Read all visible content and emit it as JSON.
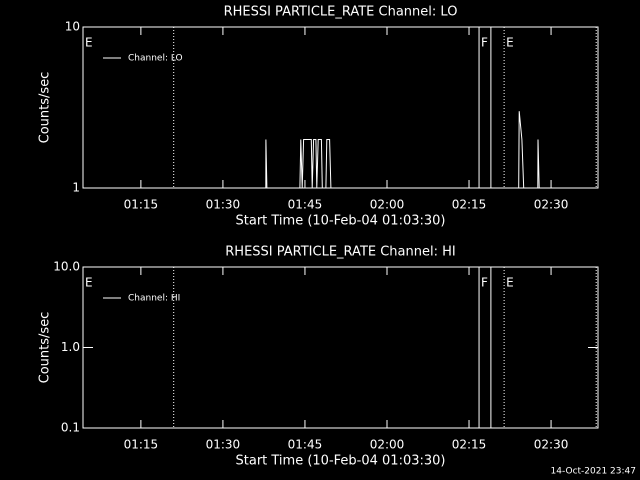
{
  "chart_data": [
    {
      "type": "line",
      "title": "RHESSI PARTICLE_RATE Channel: LO",
      "x_label": "Start Time (10-Feb-04 01:03:30)",
      "y_label": "Counts/sec",
      "log_y": true,
      "legend": "upper left",
      "xlim": [
        "01:04:25",
        "02:38:35"
      ],
      "xticks": [
        "01:15",
        "01:30",
        "01:45",
        "02:00",
        "02:15",
        "02:30"
      ],
      "ylim": [
        1,
        10
      ],
      "yticks": [
        1,
        10
      ],
      "markers": [
        {
          "x": "01:21:00",
          "style": "dotted"
        },
        {
          "x": "02:16:50",
          "style": "solid"
        },
        {
          "x": "02:19:00",
          "style": "solid"
        },
        {
          "x": "02:21:25",
          "style": "dotted"
        },
        {
          "x": "02:38:15",
          "style": "dotted"
        }
      ],
      "marker_labels": [
        {
          "text": "E",
          "x": "01:04:25"
        },
        {
          "text": "F",
          "x": "02:16:50"
        },
        {
          "text": "E",
          "x": "02:21:25"
        }
      ],
      "series": [
        {
          "name": "Channel: LO",
          "color": "#ffffff",
          "x": [
            "01:04:30",
            "01:37:50",
            "01:37:52",
            "01:38:02",
            "01:44:05",
            "01:44:15",
            "01:44:30",
            "01:44:45",
            "01:46:10",
            "01:46:20",
            "01:46:35",
            "01:47:00",
            "01:47:10",
            "01:47:25",
            "01:48:00",
            "01:48:10",
            "01:48:50",
            "01:49:00",
            "01:49:30",
            "01:49:45",
            "02:24:05",
            "02:24:10",
            "02:24:40",
            "02:25:00",
            "02:27:35",
            "02:27:37",
            "02:27:50",
            "02:38:35"
          ],
          "values": [
            1,
            1,
            2,
            1,
            1,
            2,
            1,
            2,
            2,
            1,
            2,
            2,
            1,
            2,
            2,
            1,
            1,
            2,
            2,
            1,
            1,
            3,
            2,
            1,
            1,
            2,
            1,
            1
          ]
        }
      ]
    },
    {
      "type": "line",
      "title": "RHESSI PARTICLE_RATE Channel: HI",
      "x_label": "Start Time (10-Feb-04 01:03:30)",
      "y_label": "Counts/sec",
      "log_y": true,
      "legend": "upper left",
      "xlim": [
        "01:04:25",
        "02:38:35"
      ],
      "xticks": [
        "01:15",
        "01:30",
        "01:45",
        "02:00",
        "02:15",
        "02:30"
      ],
      "ylim": [
        0.1,
        10
      ],
      "yticks": [
        0.1,
        {
          "value": 1,
          "label": "1.0"
        },
        {
          "value": 10,
          "label": "10.0"
        }
      ],
      "markers": [
        {
          "x": "01:21:00",
          "style": "dotted"
        },
        {
          "x": "02:16:50",
          "style": "solid"
        },
        {
          "x": "02:19:00",
          "style": "solid"
        },
        {
          "x": "02:21:25",
          "style": "dotted"
        },
        {
          "x": "02:38:15",
          "style": "dotted"
        }
      ],
      "marker_labels": [
        {
          "text": "E",
          "x": "01:04:25"
        },
        {
          "text": "F",
          "x": "02:16:50"
        },
        {
          "text": "E",
          "x": "02:21:25"
        }
      ],
      "series": [
        {
          "name": "Channel: HI",
          "color": "#ffffff",
          "x": [],
          "values": []
        }
      ]
    }
  ],
  "footer": "14-Oct-2021 23:47"
}
